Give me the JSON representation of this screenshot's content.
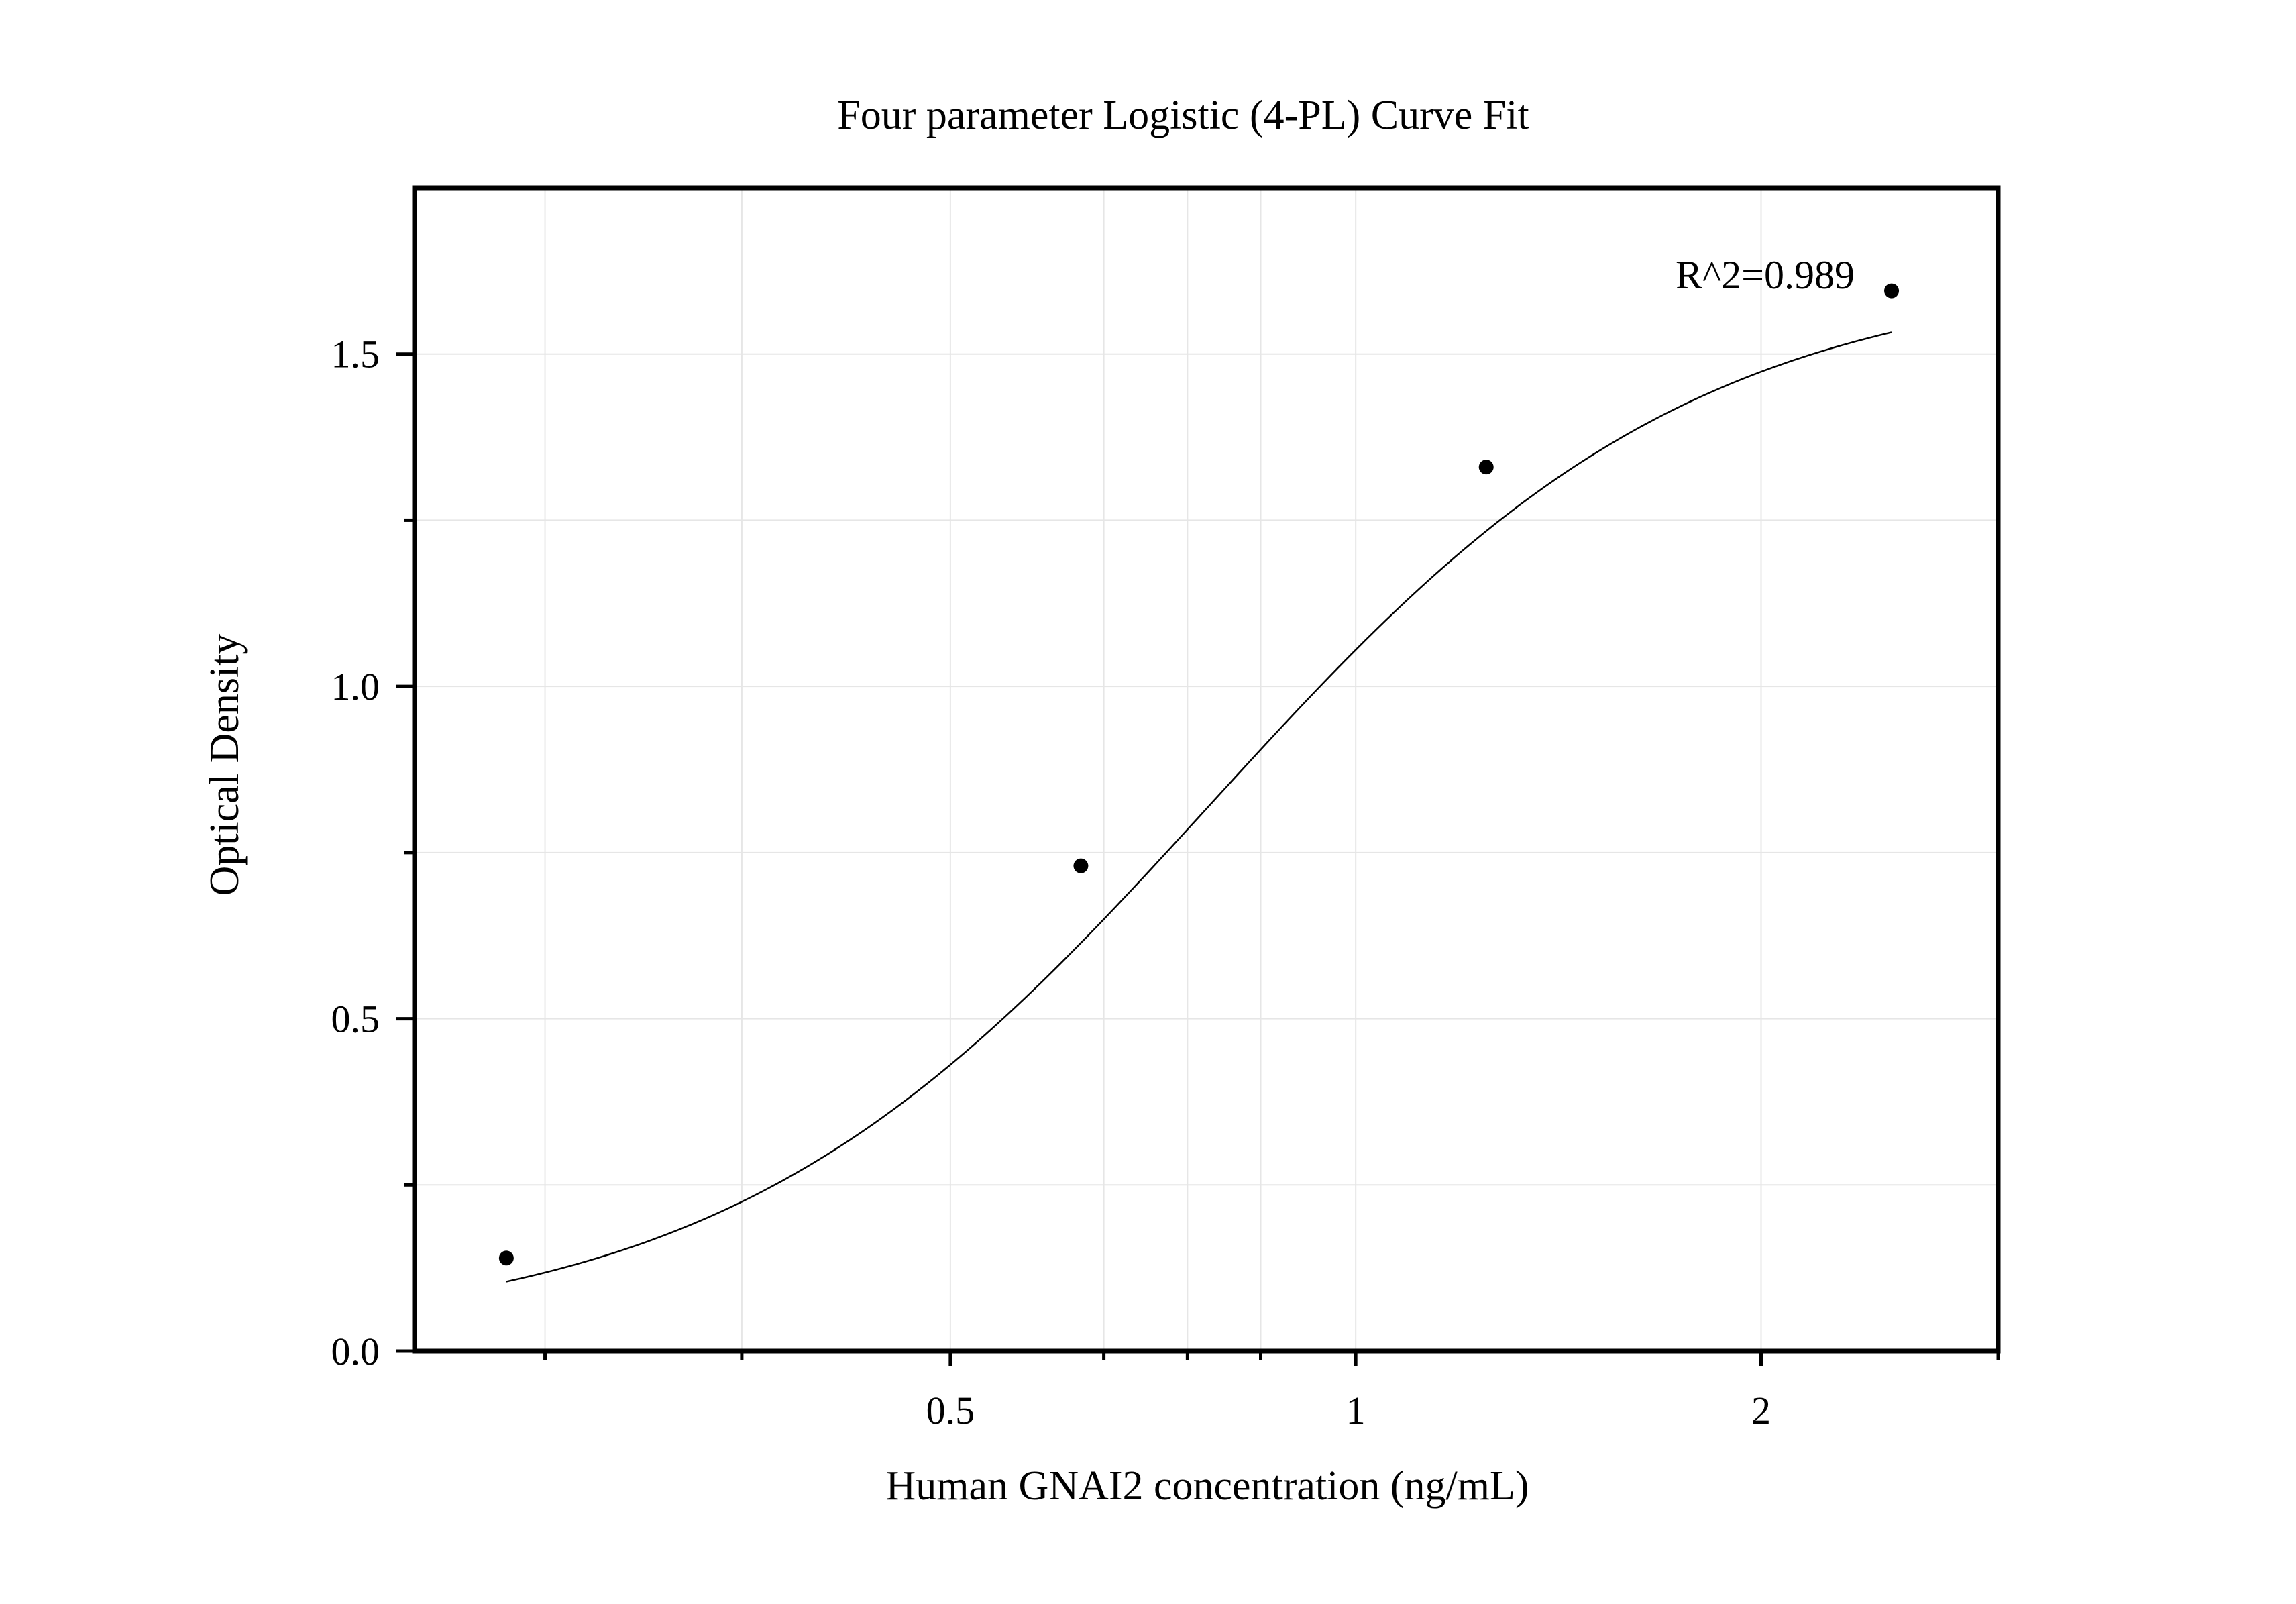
{
  "chart_data": {
    "type": "scatter",
    "title": "Four parameter Logistic (4-PL) Curve Fit",
    "xlabel": "Human GNAI2 concentration (ng/mL)",
    "ylabel": "Optical Density",
    "x_scale": "log",
    "xlim": [
      0.2,
      3.0
    ],
    "ylim": [
      0,
      1.75
    ],
    "x_ticks": [
      0.5,
      1,
      2
    ],
    "x_tick_labels": [
      "0.5",
      "1",
      "2"
    ],
    "x_minor_ticks": [
      0.25,
      0.35,
      0.65,
      0.75,
      0.85,
      3.0
    ],
    "y_ticks": [
      0.0,
      0.5,
      1.0,
      1.5
    ],
    "y_tick_labels": [
      "0.0",
      "0.5",
      "1.0",
      "1.5"
    ],
    "y_minor_ticks": [
      0.25,
      0.75,
      1.25
    ],
    "grid": true,
    "series": [
      {
        "kind": "points",
        "x": [
          0.234,
          0.625,
          1.25,
          2.5
        ],
        "y": [
          0.14,
          0.73,
          1.33,
          1.595
        ]
      },
      {
        "kind": "fit",
        "model": "4PL",
        "x_range": [
          0.234,
          2.5
        ]
      }
    ],
    "annotations": [
      {
        "text": "R^2=0.989",
        "x": 2.5,
        "y": 1.6
      }
    ],
    "colors": {
      "points": "#000000",
      "line": "#000000",
      "grid": "#e6e6e6",
      "frame": "#000000"
    }
  }
}
